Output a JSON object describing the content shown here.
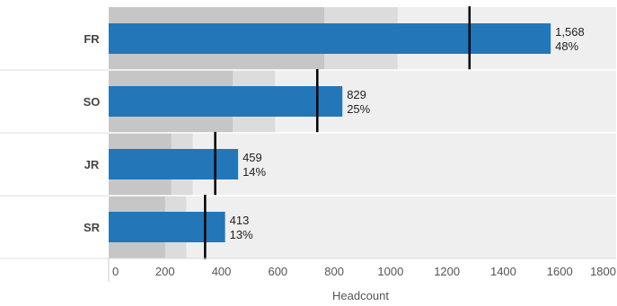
{
  "chart_data": {
    "type": "bar",
    "orientation": "horizontal",
    "variant": "bullet",
    "categories": [
      "FR",
      "SO",
      "JR",
      "SR"
    ],
    "values": [
      1568,
      829,
      459,
      413
    ],
    "percent_labels": [
      "48%",
      "25%",
      "14%",
      "13%"
    ],
    "value_labels": [
      "1,568",
      "829",
      "459",
      "413"
    ],
    "targets": [
      1280,
      740,
      378,
      342
    ],
    "bands": [
      {
        "band1": 765,
        "band2": 1025
      },
      {
        "band1": 440,
        "band2": 590
      },
      {
        "band1": 222,
        "band2": 298
      },
      {
        "band1": 200,
        "band2": 275
      }
    ],
    "xlabel": "Headcount",
    "ylabel": "",
    "title": "",
    "xlim": [
      0,
      1800
    ],
    "xticks": [
      0,
      200,
      400,
      600,
      800,
      1000,
      1200,
      1400,
      1600,
      1800
    ],
    "xtick_labels": [
      "0",
      "200",
      "400",
      "600",
      "800",
      "1000",
      "1200",
      "1400",
      "1600",
      "1800"
    ],
    "grid": false,
    "legend": "none",
    "colors": {
      "bar": "#2377b8",
      "band_dark": "#c6c6c6",
      "band_mid": "#dcdcdc",
      "background": "#efefef",
      "target": "#000000",
      "row_divider": "#ffffff"
    }
  }
}
